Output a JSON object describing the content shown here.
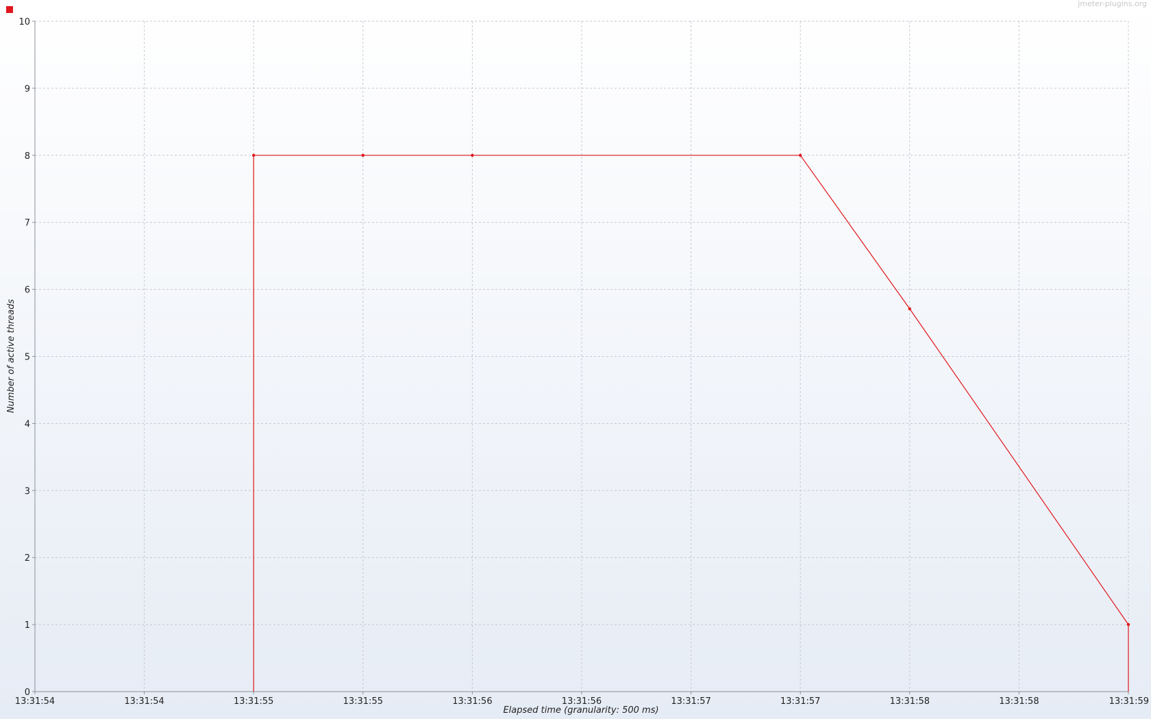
{
  "watermark": "jmeter-plugins.org",
  "colors": {
    "series": "#e0161c",
    "grid": "#c4c8d0",
    "bg_top": "#ffffff",
    "bg_bottom": "#e6ecf5"
  },
  "chart_data": {
    "type": "line",
    "title": "",
    "xlabel": "Elapsed time (granularity: 500 ms)",
    "ylabel": "Number of active threads",
    "xlim": [
      "13:31:54.000",
      "13:31:59.000"
    ],
    "ylim": [
      0,
      10
    ],
    "x_ticks": [
      {
        "time": "13:31:54.000",
        "label": "13:31:54"
      },
      {
        "time": "13:31:54.500",
        "label": "13:31:54"
      },
      {
        "time": "13:31:55.000",
        "label": "13:31:55"
      },
      {
        "time": "13:31:55.500",
        "label": "13:31:55"
      },
      {
        "time": "13:31:56.000",
        "label": "13:31:56"
      },
      {
        "time": "13:31:56.500",
        "label": "13:31:56"
      },
      {
        "time": "13:31:57.000",
        "label": "13:31:57"
      },
      {
        "time": "13:31:57.500",
        "label": "13:31:57"
      },
      {
        "time": "13:31:58.000",
        "label": "13:31:58"
      },
      {
        "time": "13:31:58.500",
        "label": "13:31:58"
      },
      {
        "time": "13:31:59.000",
        "label": "13:31:59"
      }
    ],
    "y_ticks": [
      0,
      1,
      2,
      3,
      4,
      5,
      6,
      7,
      8,
      9,
      10
    ],
    "grid": true,
    "legend": {
      "position": "top-left",
      "entries": []
    },
    "series": [
      {
        "color": "#e0161c",
        "points": [
          {
            "x": "13:31:55.000",
            "y": 0
          },
          {
            "x": "13:31:55.000",
            "y": 8
          },
          {
            "x": "13:31:55.500",
            "y": 8
          },
          {
            "x": "13:31:56.000",
            "y": 8
          },
          {
            "x": "13:31:57.500",
            "y": 8
          },
          {
            "x": "13:31:58.000",
            "y": 5.71
          },
          {
            "x": "13:31:59.000",
            "y": 1
          },
          {
            "x": "13:31:59.000",
            "y": 0
          }
        ],
        "markers": [
          {
            "x": "13:31:55.000",
            "y": 8
          },
          {
            "x": "13:31:55.500",
            "y": 8
          },
          {
            "x": "13:31:56.000",
            "y": 8
          },
          {
            "x": "13:31:57.500",
            "y": 8
          },
          {
            "x": "13:31:58.000",
            "y": 5.71
          },
          {
            "x": "13:31:59.000",
            "y": 1
          }
        ]
      }
    ]
  }
}
